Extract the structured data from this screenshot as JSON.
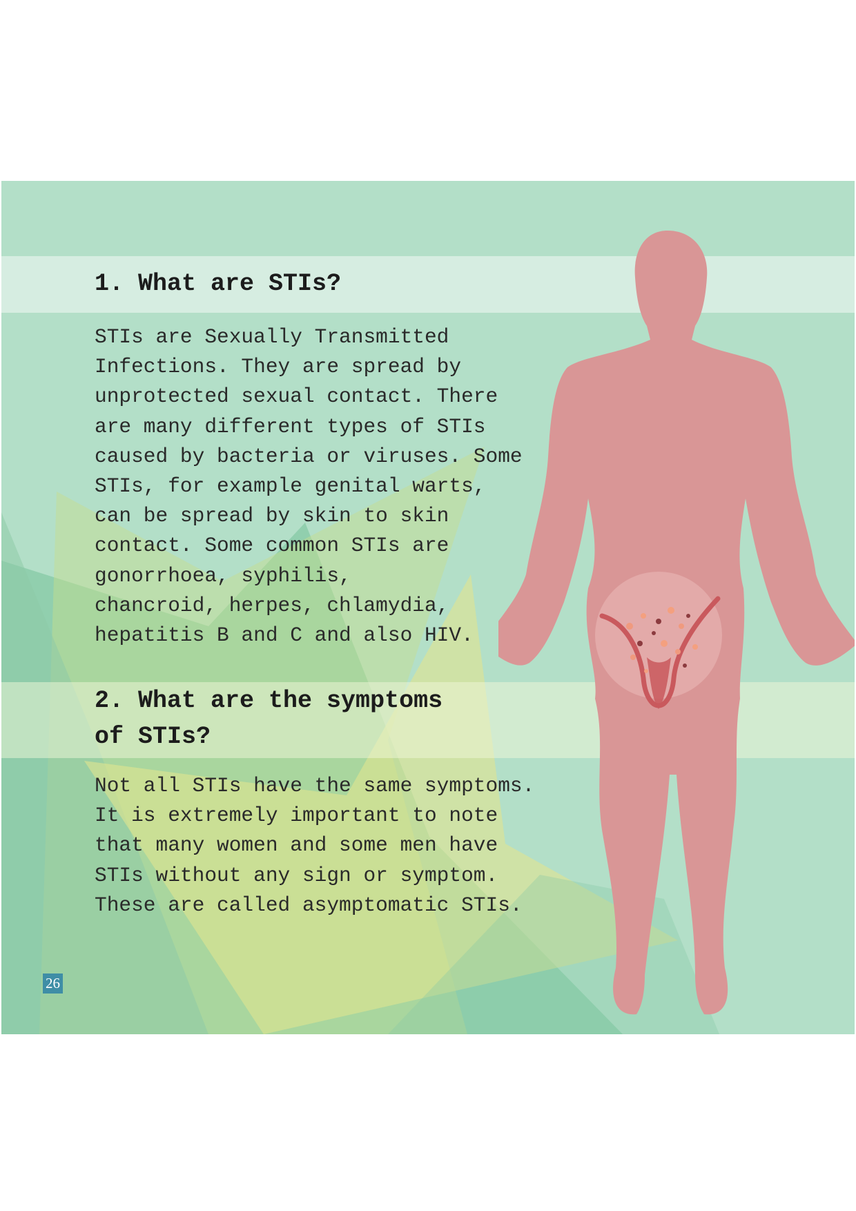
{
  "sections": [
    {
      "heading": "1.  What are STIs?",
      "body": "STIs are Sexually Transmitted\nInfections. They are spread by\nunprotected sexual contact. There\nare many different types of STIs\ncaused by bacteria or viruses. Some\nSTIs, for example genital warts,\ncan be spread by skin to skin\ncontact. Some common STIs are\ngonorrhoea, syphilis,\nchancroid,  herpes, chlamydia,\nhepatitis B and C and also HIV."
    },
    {
      "heading": "2.  What are the symptoms\nof STIs?",
      "body": "Not all STIs have the same symptoms.\nIt is extremely important to note\nthat many women and some men have\nSTIs without any sign or symptom.\nThese are called asymptomatic STIs."
    }
  ],
  "page_number": "26",
  "colors": {
    "panel_background": "#b3dfc8",
    "figure": "#d99696",
    "page_number_background": "#3f8ea6"
  }
}
